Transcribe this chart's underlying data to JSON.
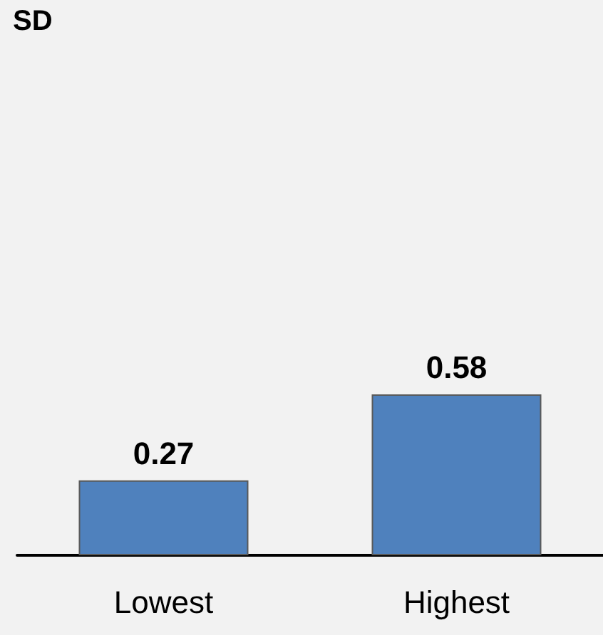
{
  "chart_data": {
    "type": "bar",
    "title": "SD",
    "categories": [
      "Lowest",
      "Highest"
    ],
    "values": [
      0.27,
      0.58
    ],
    "color": "#4f81bd",
    "data_labels": true
  }
}
